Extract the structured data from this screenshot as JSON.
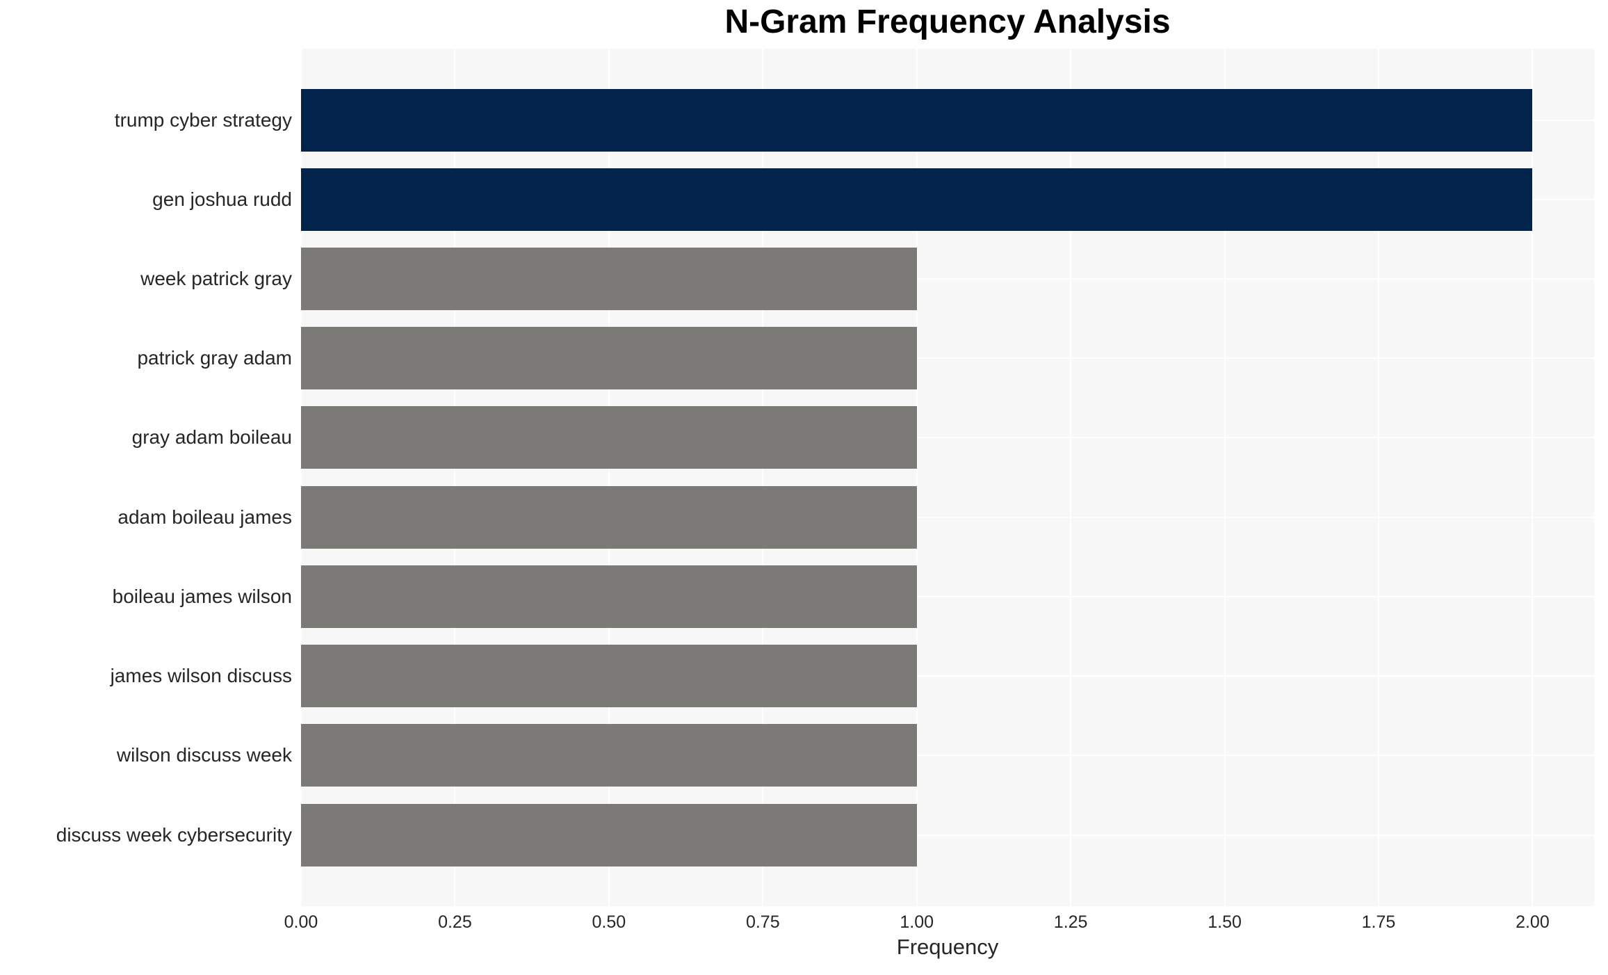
{
  "chart_data": {
    "type": "bar",
    "orientation": "horizontal",
    "title": "N-Gram Frequency Analysis",
    "xlabel": "Frequency",
    "ylabel": "",
    "categories": [
      "trump cyber strategy",
      "gen joshua rudd",
      "week patrick gray",
      "patrick gray adam",
      "gray adam boileau",
      "adam boileau james",
      "boileau james wilson",
      "james wilson discuss",
      "wilson discuss week",
      "discuss week cybersecurity"
    ],
    "values": [
      2,
      2,
      1,
      1,
      1,
      1,
      1,
      1,
      1,
      1
    ],
    "bar_colors": [
      "#02234c",
      "#02234c",
      "#7b7a77",
      "#7b7a77",
      "#7b7a77",
      "#7b7a77",
      "#7b7a77",
      "#7b7a77",
      "#7b7a77",
      "#7b7a77"
    ],
    "xlim": [
      0,
      2.1
    ],
    "xticks": [
      0,
      0.25,
      0.5,
      0.75,
      1,
      1.25,
      1.5,
      1.75,
      2
    ],
    "xtick_labels": [
      "0.00",
      "0.25",
      "0.50",
      "0.75",
      "1.00",
      "1.25",
      "1.50",
      "1.75",
      "2.00"
    ],
    "grid": true,
    "legend": false,
    "colors": {
      "bar_high": "#02234c",
      "bar_low": "#7b7a77",
      "plot_background": "#f7f7f7",
      "gridline": "#ffffff",
      "tick_text": "#262626",
      "title_text": "#000000"
    }
  }
}
